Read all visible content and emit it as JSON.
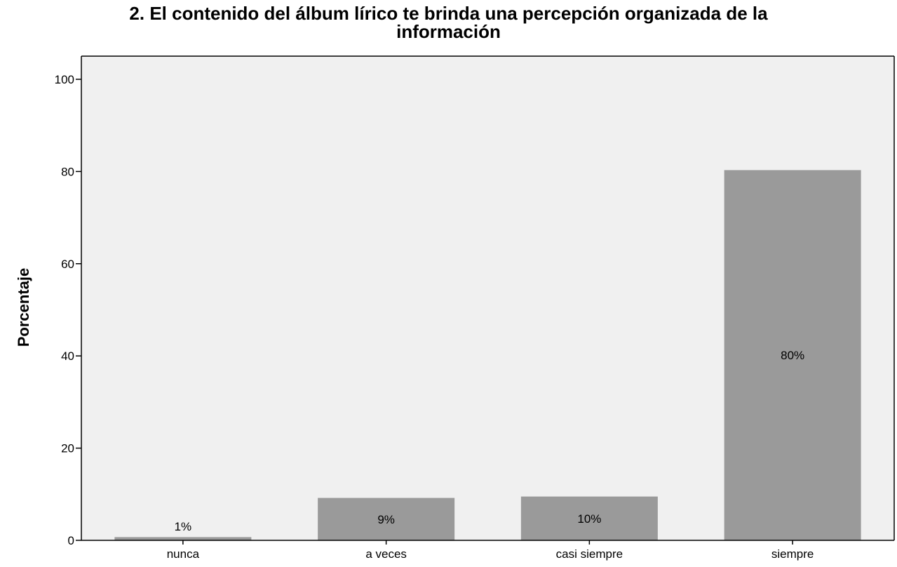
{
  "chart_data": {
    "type": "bar",
    "title": "2. El contenido del álbum lírico te brinda una percepción organizada de la información",
    "title_lines": [
      "2. El contenido del álbum lírico te brinda una percepción organizada de la",
      "información"
    ],
    "xlabel": "",
    "ylabel": "Porcentaje",
    "categories": [
      "nunca",
      "a veces",
      "casi siempre",
      "siempre"
    ],
    "values": [
      0.7,
      9.2,
      9.5,
      80.3
    ],
    "data_labels": [
      "1%",
      "9%",
      "10%",
      "80%"
    ],
    "ylim": [
      0,
      100
    ],
    "yticks": [
      0,
      20,
      40,
      60,
      80,
      100
    ],
    "grid": false,
    "colors": {
      "plot_background": "#f0f0f0",
      "bar": "#9a9a9a"
    }
  }
}
